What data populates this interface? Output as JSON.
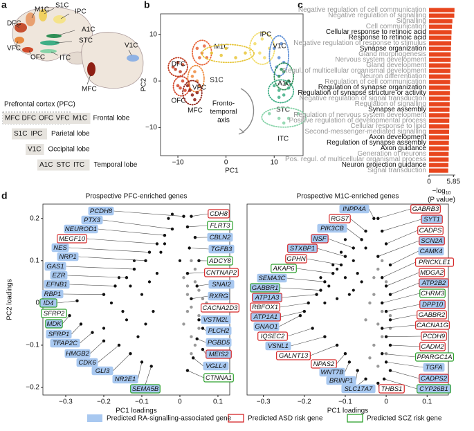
{
  "panel_a": {
    "letter": "a",
    "brain_labels": [
      "M1C",
      "S1C",
      "IPC",
      "DFC",
      "A1C",
      "STC",
      "VFC",
      "OFC",
      "ITC",
      "V1C",
      "MFC"
    ],
    "pfc_title": "Prefrontal cortex (PFC)",
    "lobes": [
      {
        "regions": [
          "MFC",
          "DFC",
          "OFC",
          "VFC",
          "M1C"
        ],
        "name": "Frontal lobe"
      },
      {
        "regions": [
          "S1C",
          "IPC"
        ],
        "name": "Parietal lobe"
      },
      {
        "regions": [
          "V1C"
        ],
        "name": "Occipital lobe"
      },
      {
        "regions": [
          "A1C",
          "STC",
          "ITC"
        ],
        "name": "Temporal lobe"
      }
    ]
  },
  "chart_data": [
    {
      "type": "scatter",
      "letter": "b",
      "xlabel": "PC1",
      "ylabel": "PC2",
      "xlim": [
        -13.6,
        16
      ],
      "ylim": [
        -16,
        14.4
      ],
      "xticks": [
        {
          "value": -10,
          "label": "−10"
        },
        0,
        10
      ],
      "yticks": [
        {
          "value": -10,
          "label": "−10"
        },
        0,
        10
      ],
      "annotation": [
        "Fronto-",
        "temporal",
        "axis"
      ],
      "series": [
        {
          "name": "DFC",
          "color": "#c0391c",
          "x": [
            -11,
            -10,
            -9.5,
            -10.5,
            -9
          ],
          "y": [
            3,
            4,
            2,
            2.5,
            3.5
          ]
        },
        {
          "name": "M1C",
          "color": "#e8663a",
          "x": [
            -6,
            -5,
            -4,
            -5.5,
            -4.5
          ],
          "y": [
            7,
            6,
            5,
            5,
            7.5
          ]
        },
        {
          "name": "OFC",
          "color": "#d2452a",
          "x": [
            -10,
            -9,
            -8.5,
            -9.5
          ],
          "y": [
            -1,
            0,
            -2,
            -1.5
          ]
        },
        {
          "name": "VFC",
          "color": "#ef8a3c",
          "x": [
            -7,
            -6,
            -5.5,
            -6.5
          ],
          "y": [
            1,
            0,
            -1,
            2
          ]
        },
        {
          "name": "MFC",
          "color": "#8e1f14",
          "x": [
            -8,
            -7,
            -6.5,
            -7.5,
            -6
          ],
          "y": [
            -1,
            -3,
            -4,
            -2,
            -2.5
          ]
        },
        {
          "name": "S1C",
          "color": "#e7c63a",
          "x": [
            -3,
            0,
            2,
            4,
            -1
          ],
          "y": [
            6,
            7,
            5,
            6,
            5.5
          ]
        },
        {
          "name": "IPC",
          "color": "#f2dc6a",
          "x": [
            6,
            7,
            8,
            9,
            7.5
          ],
          "y": [
            8,
            6,
            5,
            7,
            9
          ]
        },
        {
          "name": "V1C",
          "color": "#5e8fd6",
          "x": [
            10,
            11,
            12,
            11.5,
            10.5
          ],
          "y": [
            7,
            5,
            4,
            8,
            3
          ]
        },
        {
          "name": "A1C",
          "color": "#2f8f56",
          "x": [
            11,
            12,
            13,
            12.5,
            11.5
          ],
          "y": [
            1,
            2,
            0,
            -0.5,
            2.5
          ]
        },
        {
          "name": "STC",
          "color": "#3fae86",
          "x": [
            10,
            11,
            12,
            13,
            11
          ],
          "y": [
            -1,
            -2,
            -3,
            -1.5,
            -3.5
          ]
        },
        {
          "name": "ITC",
          "color": "#86d3a8",
          "x": [
            9,
            11,
            13,
            15,
            12
          ],
          "y": [
            -7,
            -8,
            -8,
            -7,
            -9
          ]
        }
      ]
    },
    {
      "type": "barh",
      "letter": "c",
      "color": "#e8461e",
      "xlim": [
        0,
        6.3
      ],
      "xticks": [
        0,
        5.85
      ],
      "xlabel": [
        "−log",
        "10",
        "(P value)"
      ],
      "categories": [
        "Negative regulation of cell communication",
        "Negative regulation of signalling",
        "Signalling",
        "Cell communication",
        "Cellular response to retinoic acid",
        "Response to retinoic acid",
        "Negative regulation of response to stimulus",
        "Synapse organization",
        "Gland morphogenesis",
        "Nervous system development",
        "Gland development",
        "Regul. of multicellular organismal development",
        "Neuron differentiation",
        "Regulation of cell communication",
        "Regulation of synapse organization",
        "Regulation of synapse structure or activity",
        "Negative regulation of signal transduction",
        "Regulation of signalling",
        "Synapse assembly",
        "Regulation of nervous system development",
        "Positive regulation of developmental process",
        "Cellular response to lipid",
        "Second-messenger-mediated signalling",
        "Axon development",
        "Regulation of synapse assembly",
        "Axon guidance",
        "Generation of neurons",
        "Pos. regul. of multicellular organismal process",
        "Neuron projection guidance",
        "Signal transduction"
      ],
      "values": [
        6.1,
        6.05,
        5.6,
        5.5,
        5.4,
        5.35,
        5.3,
        5.25,
        5.2,
        5.2,
        5.15,
        5.1,
        5.1,
        5.05,
        5.0,
        5.0,
        4.95,
        4.95,
        4.9,
        4.9,
        4.85,
        4.85,
        4.8,
        4.8,
        4.75,
        4.75,
        4.7,
        4.7,
        4.65,
        4.6
      ],
      "label_colors": [
        "#999",
        "#999",
        "#999",
        "#999",
        "#111",
        "#111",
        "#999",
        "#111",
        "#999",
        "#999",
        "#999",
        "#999",
        "#999",
        "#999",
        "#111",
        "#111",
        "#999",
        "#999",
        "#111",
        "#999",
        "#999",
        "#999",
        "#999",
        "#111",
        "#111",
        "#111",
        "#999",
        "#999",
        "#111",
        "#999"
      ]
    },
    {
      "type": "genes",
      "letter": "d",
      "title": "Prospective PFC-enriched genes",
      "xlabel": "PC1  loadings",
      "ylabel": "PC2 loadings",
      "xlim": [
        -0.36,
        0.131
      ],
      "ylim": [
        -0.218,
        0.234
      ],
      "xticks": [
        {
          "value": -0.3,
          "label": "−0.3"
        },
        {
          "value": -0.2,
          "label": "−0.2"
        },
        {
          "value": -0.1,
          "label": "−0.1"
        },
        0,
        0.1
      ],
      "yticks": [
        {
          "value": -0.2,
          "label": "−0.2"
        },
        {
          "value": -0.1,
          "label": "−0.1"
        },
        0,
        0.1,
        0.2
      ],
      "genes": [
        {
          "name": "PCDH8",
          "x": 0.01,
          "y": 0.205,
          "ra": true
        },
        {
          "name": "PTX3",
          "x": -0.02,
          "y": 0.175,
          "ra": true
        },
        {
          "name": "NEUROD1",
          "x": -0.04,
          "y": 0.16,
          "ra": true
        },
        {
          "name": "MEGF10",
          "x": -0.06,
          "y": 0.14,
          "asd": true
        },
        {
          "name": "NES",
          "x": -0.08,
          "y": 0.12,
          "ra": true
        },
        {
          "name": "NRP1",
          "x": -0.09,
          "y": 0.1,
          "ra": true
        },
        {
          "name": "GAS1",
          "x": -0.12,
          "y": 0.08,
          "ra": true
        },
        {
          "name": "EZR",
          "x": -0.14,
          "y": 0.06,
          "ra": true
        },
        {
          "name": "EFNB1",
          "x": -0.17,
          "y": 0.04,
          "ra": true
        },
        {
          "name": "RBP1",
          "x": -0.2,
          "y": 0.02,
          "ra": true
        },
        {
          "name": "ID4",
          "x": -0.27,
          "y": 0.005,
          "ra": true,
          "scz": true
        },
        {
          "name": "SFRP2",
          "x": -0.31,
          "y": -0.02,
          "scz": true
        },
        {
          "name": "MDK",
          "x": -0.29,
          "y": -0.03,
          "ra": true,
          "scz": true
        },
        {
          "name": "SFRP1",
          "x": -0.26,
          "y": -0.05,
          "ra": true
        },
        {
          "name": "TFAP2C",
          "x": -0.23,
          "y": -0.07,
          "ra": true
        },
        {
          "name": "HMGB2",
          "x": -0.2,
          "y": -0.09,
          "ra": true
        },
        {
          "name": "CDK6",
          "x": -0.16,
          "y": -0.1,
          "ra": true
        },
        {
          "name": "GLI3",
          "x": -0.13,
          "y": -0.12,
          "ra": true
        },
        {
          "name": "NR2E1",
          "x": -0.1,
          "y": -0.14,
          "ra": true
        },
        {
          "name": "SEMA5B",
          "x": -0.075,
          "y": -0.15,
          "ra": true,
          "scz": true
        },
        {
          "name": "CDH8",
          "x": 0.03,
          "y": 0.205,
          "asd": true
        },
        {
          "name": "FLRT3",
          "x": 0.02,
          "y": 0.18,
          "scz": true
        },
        {
          "name": "CBLN2",
          "x": 0.04,
          "y": 0.155,
          "ra": true
        },
        {
          "name": "TGFB3",
          "x": 0.025,
          "y": 0.13,
          "ra": true
        },
        {
          "name": "ADCY8",
          "x": 0.05,
          "y": 0.1,
          "scz": true
        },
        {
          "name": "CNTNAP2",
          "x": 0.02,
          "y": 0.07,
          "asd": true
        },
        {
          "name": "SNAI2",
          "x": 0.045,
          "y": 0.04,
          "ra": true
        },
        {
          "name": "RXRG",
          "x": 0.03,
          "y": 0.01,
          "ra": true
        },
        {
          "name": "CACNA2D3",
          "x": 0.065,
          "y": -0.015,
          "asd": true
        },
        {
          "name": "VSTM2L",
          "x": 0.05,
          "y": -0.04,
          "ra": true
        },
        {
          "name": "PLCH2",
          "x": 0.06,
          "y": -0.06,
          "ra": true
        },
        {
          "name": "PGBD5",
          "x": 0.045,
          "y": -0.085,
          "ra": true
        },
        {
          "name": "MEIS2",
          "x": 0.06,
          "y": -0.11,
          "ra": true,
          "asd": true
        },
        {
          "name": "VGLL4",
          "x": 0.035,
          "y": -0.13,
          "ra": true
        },
        {
          "name": "CTNNA1",
          "x": 0.02,
          "y": -0.16,
          "scz": true
        }
      ],
      "black_points": {
        "x": [
          -0.05,
          -0.08,
          -0.1,
          -0.12,
          -0.15,
          -0.18,
          -0.06,
          -0.03,
          -0.09,
          -0.13,
          -0.2,
          -0.07,
          -0.11,
          -0.04,
          -0.16,
          0.0,
          -0.02,
          -0.14
        ],
        "y": [
          0.12,
          0.05,
          0.02,
          0.1,
          -0.02,
          0.0,
          0.07,
          0.2,
          -0.05,
          0.04,
          -0.06,
          -0.02,
          -0.08,
          0.14,
          0.06,
          0.1,
          0.21,
          -0.04
        ]
      },
      "gray_points": {
        "x": [
          0.02,
          0.03,
          0.04,
          0.05,
          0.01,
          0.06,
          0.03,
          0.04,
          0.02,
          0.05,
          0.07,
          0.03,
          0.01,
          0.04,
          0.06,
          0.02,
          0.05,
          0.03
        ],
        "y": [
          0.02,
          -0.01,
          0.05,
          -0.03,
          -0.05,
          0.01,
          -0.08,
          0.08,
          0.04,
          -0.06,
          0.0,
          -0.12,
          0.06,
          -0.1,
          -0.04,
          -0.02,
          0.03,
          0.1
        ]
      }
    },
    {
      "type": "genes",
      "title": "Prospective M1C-enriched genes",
      "xlabel": "PC1  loadings",
      "xlim": [
        -0.34,
        0.152
      ],
      "ylim": [
        -0.218,
        0.234
      ],
      "xticks": [
        {
          "value": -0.3,
          "label": "−0.3"
        },
        {
          "value": -0.2,
          "label": "−0.2"
        },
        {
          "value": -0.1,
          "label": "−0.1"
        },
        0,
        0.1
      ],
      "genes": [
        {
          "name": "INPP4A",
          "x": -0.03,
          "y": 0.2,
          "ra": true
        },
        {
          "name": "RGS7",
          "x": -0.05,
          "y": 0.17,
          "asd": true
        },
        {
          "name": "PIK3CB",
          "x": -0.06,
          "y": 0.15,
          "ra": true
        },
        {
          "name": "NSF",
          "x": -0.08,
          "y": 0.13,
          "ra": true,
          "asd": true
        },
        {
          "name": "STXBP1",
          "x": -0.1,
          "y": 0.11,
          "ra": true,
          "asd": true
        },
        {
          "name": "GPHN",
          "x": -0.11,
          "y": 0.09,
          "asd": true
        },
        {
          "name": "AKAP6",
          "x": -0.13,
          "y": 0.07,
          "scz": true
        },
        {
          "name": "SEMA3C",
          "x": -0.15,
          "y": 0.05,
          "ra": true
        },
        {
          "name": "GABBR1",
          "x": -0.16,
          "y": 0.03,
          "ra": true,
          "scz": true
        },
        {
          "name": "ATP1A3",
          "x": -0.17,
          "y": 0.02,
          "ra": true,
          "asd": true
        },
        {
          "name": "RBFOX1",
          "x": -0.19,
          "y": 0.0,
          "asd": true
        },
        {
          "name": "ATP1A1",
          "x": -0.2,
          "y": -0.02,
          "ra": true,
          "asd": true
        },
        {
          "name": "GNAO1",
          "x": -0.21,
          "y": -0.03,
          "ra": true
        },
        {
          "name": "IQSEC2",
          "x": -0.18,
          "y": -0.06,
          "asd": true
        },
        {
          "name": "VSNL1",
          "x": -0.15,
          "y": -0.08,
          "ra": true
        },
        {
          "name": "GALNT13",
          "x": -0.12,
          "y": -0.1,
          "asd": true
        },
        {
          "name": "NPAS2",
          "x": -0.1,
          "y": -0.12,
          "asd": true
        },
        {
          "name": "WNT7B",
          "x": -0.09,
          "y": -0.14,
          "ra": true
        },
        {
          "name": "BRINP1",
          "x": -0.07,
          "y": -0.16,
          "ra": true
        },
        {
          "name": "SLC17A7",
          "x": -0.05,
          "y": -0.18,
          "ra": true
        },
        {
          "name": "THBS1",
          "x": -0.02,
          "y": -0.19,
          "asd": true
        },
        {
          "name": "GABRB3",
          "x": -0.02,
          "y": 0.2,
          "asd": true
        },
        {
          "name": "SYT1",
          "x": -0.01,
          "y": 0.17,
          "ra": true,
          "asd": true
        },
        {
          "name": "CADPS",
          "x": 0.0,
          "y": 0.14,
          "asd": true
        },
        {
          "name": "SCN2A",
          "x": -0.02,
          "y": 0.11,
          "ra": true,
          "asd": true
        },
        {
          "name": "CAMK4",
          "x": 0.01,
          "y": 0.09,
          "ra": true
        },
        {
          "name": "PRICKLE1",
          "x": -0.01,
          "y": 0.06,
          "asd": true
        },
        {
          "name": "MDGA2",
          "x": 0.0,
          "y": 0.04,
          "asd": true
        },
        {
          "name": "ATP2B2",
          "x": 0.01,
          "y": 0.02,
          "ra": true,
          "asd": true
        },
        {
          "name": "CHRM3",
          "x": -0.01,
          "y": 0.0,
          "scz": true
        },
        {
          "name": "DPP10",
          "x": 0.0,
          "y": -0.02,
          "ra": true,
          "asd": true
        },
        {
          "name": "GABBR2",
          "x": 0.01,
          "y": -0.04,
          "asd": true
        },
        {
          "name": "CACNA1G",
          "x": -0.01,
          "y": -0.06,
          "asd": true
        },
        {
          "name": "PCDH9",
          "x": 0.0,
          "y": -0.08,
          "asd": true
        },
        {
          "name": "CADM2",
          "x": 0.01,
          "y": -0.1,
          "asd": true
        },
        {
          "name": "PPARGC1A",
          "x": -0.01,
          "y": -0.12,
          "scz": true
        },
        {
          "name": "TGFA",
          "x": 0.0,
          "y": -0.14,
          "ra": true
        },
        {
          "name": "CADPS2",
          "x": 0.01,
          "y": -0.16,
          "ra": true,
          "asd": true
        },
        {
          "name": "CYP26B1",
          "x": -0.005,
          "y": -0.18,
          "ra": true,
          "scz": true
        }
      ],
      "black_points": {
        "x": [
          -0.12,
          -0.1,
          -0.08,
          -0.14,
          -0.06,
          -0.11,
          -0.09,
          -0.13,
          -0.07,
          -0.16,
          -0.05,
          -0.1,
          -0.12,
          -0.08,
          -0.15
        ],
        "y": [
          0.08,
          0.06,
          0.1,
          0.04,
          0.05,
          0.12,
          0.02,
          0.09,
          0.07,
          0.06,
          0.13,
          0.15,
          0.01,
          0.03,
          0.0
        ]
      },
      "gray_points": {
        "x": [
          -0.03,
          -0.01,
          0.0,
          -0.02,
          -0.04,
          -0.01,
          0.01,
          -0.03,
          -0.02,
          0.0,
          -0.05,
          -0.01,
          -0.03,
          -0.02,
          0.01,
          -0.04
        ],
        "y": [
          0.02,
          -0.02,
          0.05,
          -0.05,
          0.0,
          -0.08,
          -0.03,
          -0.1,
          0.08,
          -0.12,
          -0.04,
          0.1,
          0.06,
          -0.15,
          -0.06,
          -0.13
        ]
      }
    }
  ],
  "legend_d": [
    "Predicted RA-signalling-associated gene",
    "Predicted ASD risk gene",
    "Predicted SCZ risk gene"
  ]
}
